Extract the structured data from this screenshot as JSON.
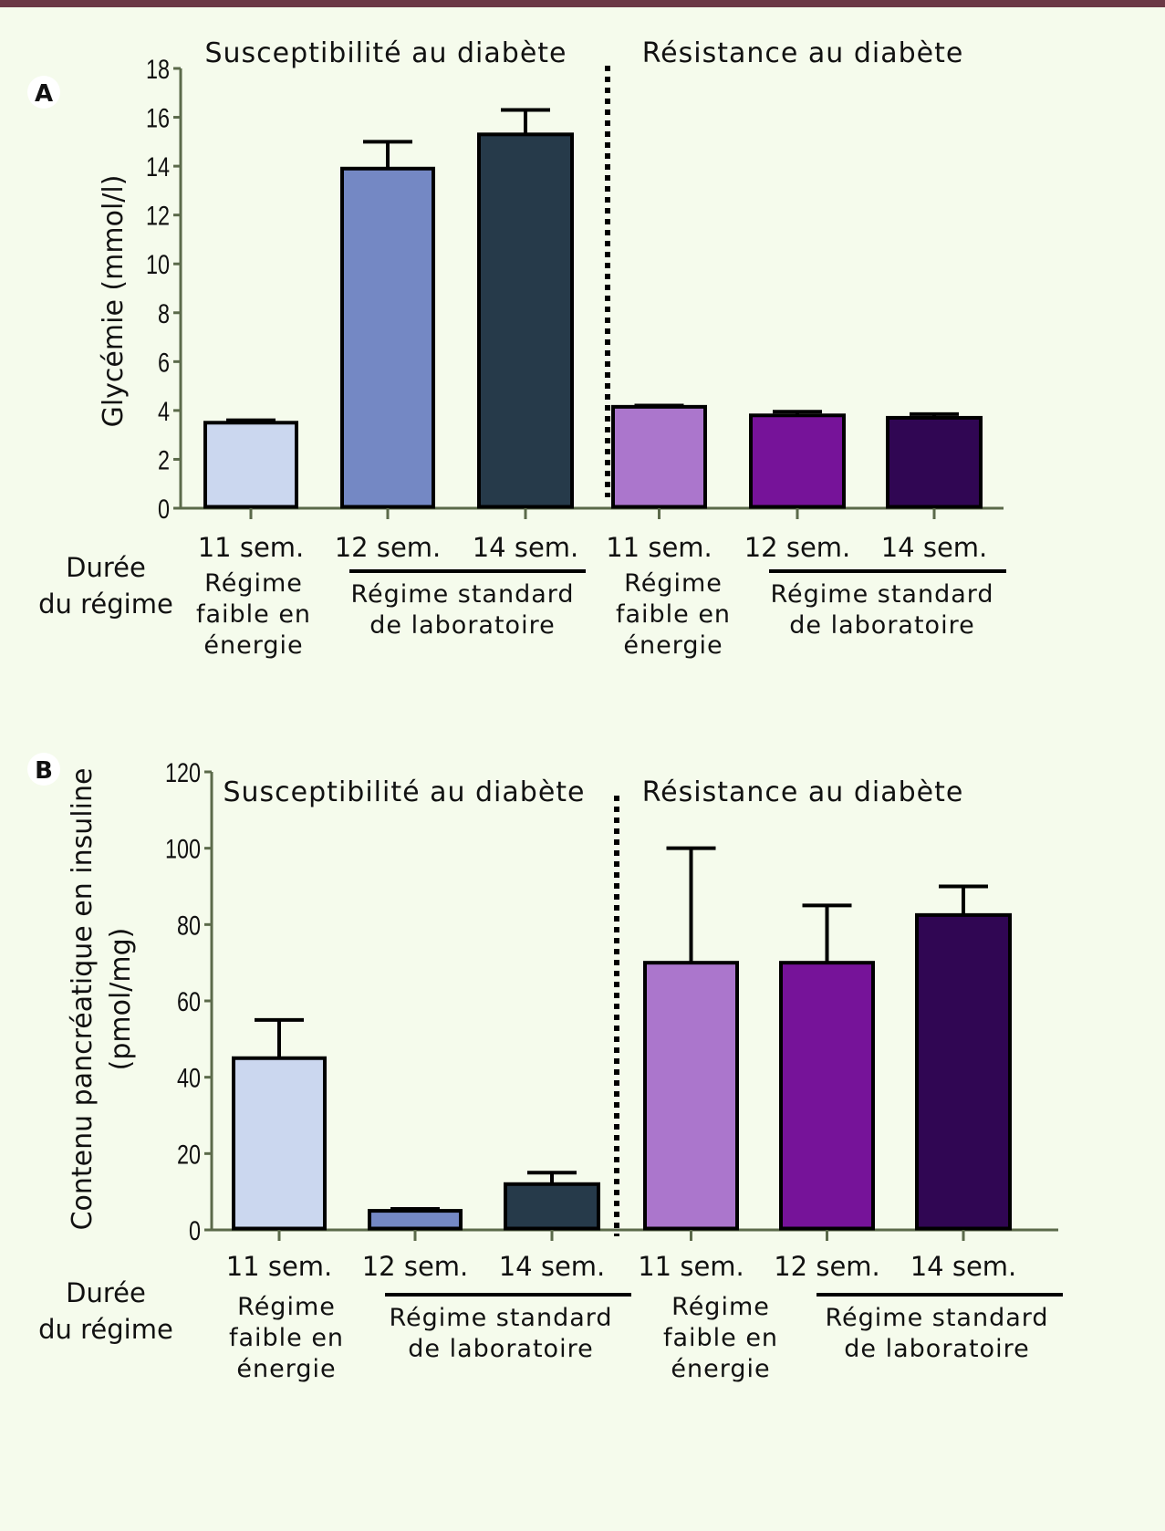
{
  "chart_data": [
    {
      "panel": "A",
      "type": "bar",
      "title_left": "Susceptibilité au diabète",
      "title_right": "Résistance au diabète",
      "ylabel": "Glycémie (mmol/l)",
      "xlabel": "Durée du régime",
      "ylim": [
        0,
        18
      ],
      "yticks": [
        0,
        2,
        4,
        6,
        8,
        10,
        12,
        14,
        16,
        18
      ],
      "categories": [
        "11 sem.",
        "12 sem.",
        "14 sem.",
        "11 sem.",
        "12 sem.",
        "14 sem."
      ],
      "values": [
        3.5,
        13.9,
        15.3,
        4.15,
        3.8,
        3.7
      ],
      "error_upper": [
        3.6,
        15.0,
        16.3,
        4.2,
        3.95,
        3.85
      ],
      "colors": [
        "#cbd7ef",
        "#7488c4",
        "#263a4a",
        "#ab76cc",
        "#761399",
        "#300653"
      ],
      "group_labels": [
        {
          "lines": [
            "Régime",
            "faible en",
            "énergie"
          ],
          "underline": false
        },
        {
          "lines": [
            "Régime standard",
            "de laboratoire"
          ],
          "underline": true
        },
        {
          "lines": [
            "Régime",
            "faible en",
            "énergie"
          ],
          "underline": false
        },
        {
          "lines": [
            "Régime standard",
            "de laboratoire"
          ],
          "underline": true
        }
      ],
      "separator": "dotted line between group 1 and group 2"
    },
    {
      "panel": "B",
      "type": "bar",
      "title_left": "Susceptibilité au diabète",
      "title_right": "Résistance au diabète",
      "ylabel": "Contenu pancréatique en insuline (pmol/mg)",
      "ylabel_lines": [
        "Contenu pancréatique en insuline",
        "(pmol/mg)"
      ],
      "xlabel": "Durée du régime",
      "ylim": [
        0,
        120
      ],
      "yticks": [
        0,
        20,
        40,
        60,
        80,
        100,
        120
      ],
      "categories": [
        "11 sem.",
        "12 sem.",
        "14 sem.",
        "11 sem.",
        "12 sem.",
        "14 sem."
      ],
      "values": [
        45,
        5,
        12,
        70,
        70,
        82.5
      ],
      "error_upper": [
        55,
        5.5,
        15,
        100,
        85,
        90
      ],
      "colors": [
        "#cbd7ef",
        "#7488c4",
        "#263a4a",
        "#ab76cc",
        "#761399",
        "#300653"
      ],
      "group_labels": [
        {
          "lines": [
            "Régime",
            "faible en",
            "énergie"
          ],
          "underline": false
        },
        {
          "lines": [
            "Régime standard",
            "de laboratoire"
          ],
          "underline": true
        },
        {
          "lines": [
            "Régime",
            "faible en",
            "énergie"
          ],
          "underline": false
        },
        {
          "lines": [
            "Régime standard",
            "de laboratoire"
          ],
          "underline": true
        }
      ],
      "separator": "dotted line between group 1 and group 2"
    }
  ],
  "panels": {
    "A": {
      "badge": "A",
      "xlabel_lines": [
        "Durée",
        "du régime"
      ]
    },
    "B": {
      "badge": "B",
      "xlabel_lines": [
        "Durée",
        "du régime"
      ]
    }
  },
  "colors": {
    "topbar": "#6b3845",
    "background": "#f5fbec",
    "axis": "#5b6a4a"
  }
}
